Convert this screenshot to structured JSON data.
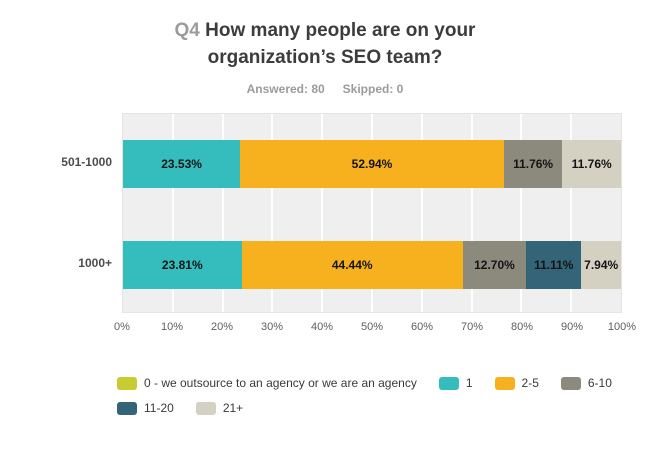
{
  "header": {
    "answered": "Answered: 80",
    "skipped": "Skipped: 0"
  },
  "chart_data": {
    "type": "bar",
    "orientation": "horizontal-stacked",
    "question_label": "Q4",
    "question_text": "How many people are on your organization’s SEO team?",
    "answered": 80,
    "skipped": 0,
    "categories": [
      "501-1000",
      "1000+"
    ],
    "series": [
      {
        "name": "0 - we outsource to an agency or we are an agency",
        "color": "#c7cc33",
        "values": [
          0,
          0
        ]
      },
      {
        "name": "1",
        "color": "#35bdbe",
        "values": [
          23.53,
          23.81
        ]
      },
      {
        "name": "2-5",
        "color": "#f8b11e",
        "values": [
          52.94,
          44.44
        ]
      },
      {
        "name": "6-10",
        "color": "#8b8a7c",
        "values": [
          11.76,
          12.7
        ]
      },
      {
        "name": "11-20",
        "color": "#336477",
        "values": [
          0,
          11.11
        ]
      },
      {
        "name": "21+",
        "color": "#d4d1c2",
        "values": [
          11.76,
          7.94
        ]
      }
    ],
    "segment_labels": [
      [
        "23.53%",
        "52.94%",
        "11.76%",
        "11.76%"
      ],
      [
        "23.81%",
        "44.44%",
        "12.70%",
        "11.11%",
        "7.94%"
      ]
    ],
    "x_ticks": [
      "0%",
      "10%",
      "20%",
      "30%",
      "40%",
      "50%",
      "60%",
      "70%",
      "80%",
      "90%",
      "100%"
    ],
    "xlim": [
      0,
      100
    ],
    "grid": true,
    "legend_position": "bottom",
    "plot_background": "#efefef",
    "gridline_color": "#ffffff"
  }
}
